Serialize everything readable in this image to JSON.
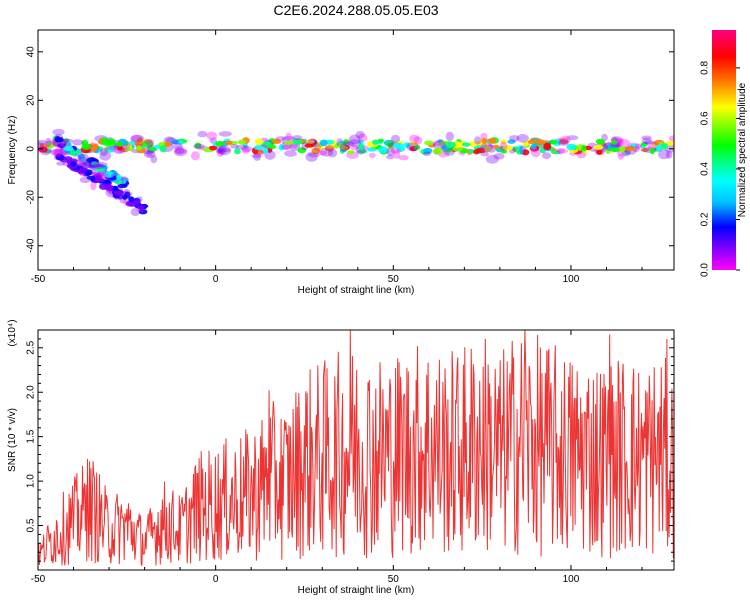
{
  "title": "C2E6.2024.288.05.05.E03",
  "chart_data": [
    {
      "type": "heatmap",
      "xlabel": "Height of straight line (km)",
      "ylabel": "Frequency (Hz)",
      "xlim": [
        -50,
        129
      ],
      "ylim": [
        -50,
        49
      ],
      "xticks": [
        -50,
        0,
        50,
        100
      ],
      "yticks": [
        -40,
        -20,
        0,
        20,
        40
      ],
      "colorbar": {
        "label": "Normalized spectral amplitude",
        "ticks": [
          0.0,
          0.2,
          0.4,
          0.6,
          0.8
        ],
        "range": [
          0,
          0.95
        ],
        "colormap": [
          "#ff00ff",
          "#8000ff",
          "#0000ff",
          "#00c0ff",
          "#00ffff",
          "#00ff80",
          "#00ff00",
          "#80ff00",
          "#ffff00",
          "#ff8000",
          "#ff0000",
          "#ff0080"
        ]
      },
      "ridges": [
        {
          "x_start": -50,
          "x_end": 129,
          "freq": 1,
          "intensity": 0.7
        },
        {
          "x_start": -45,
          "x_end": -25,
          "freq_start": 4,
          "freq_end": -15,
          "intensity": 0.4
        },
        {
          "x_start": -45,
          "x_end": -20,
          "freq_start": -2,
          "freq_end": -25,
          "intensity": 0.2
        }
      ]
    },
    {
      "type": "line",
      "xlabel": "Height of straight line (km)",
      "ylabel": "SNR (10 * v/v)",
      "y_multiplier": "(x10⁴)",
      "xlim": [
        -50,
        129
      ],
      "ylim": [
        0,
        2.7
      ],
      "xticks": [
        -50,
        0,
        50,
        100
      ],
      "yticks": [
        0.5,
        1.0,
        1.5,
        2.0,
        2.5
      ],
      "series": [
        {
          "color": "#ee3333",
          "x": [
            -50,
            -45,
            -40,
            -35,
            -30,
            -25,
            -20,
            -15,
            -10,
            -5,
            0,
            5,
            10,
            15,
            20,
            25,
            30,
            35,
            40,
            45,
            50,
            55,
            60,
            65,
            70,
            75,
            80,
            85,
            90,
            95,
            100,
            105,
            110,
            115,
            120,
            125,
            129
          ],
          "y": [
            0.15,
            0.4,
            0.55,
            0.7,
            0.45,
            0.5,
            0.3,
            0.55,
            0.45,
            0.7,
            0.75,
            0.8,
            0.85,
            1.0,
            1.0,
            1.2,
            1.25,
            1.3,
            1.35,
            1.3,
            1.3,
            1.35,
            1.4,
            1.3,
            1.35,
            1.45,
            1.3,
            1.45,
            1.4,
            1.35,
            1.3,
            1.3,
            1.25,
            1.3,
            1.25,
            1.3,
            1.2
          ],
          "peaks": [
            {
              "x": -36,
              "y": 1.25
            },
            {
              "x": 15,
              "y": 2.02
            },
            {
              "x": 38,
              "y": 2.7
            },
            {
              "x": 87,
              "y": 2.7
            },
            {
              "x": 111,
              "y": 2.65
            },
            {
              "x": 127,
              "y": 2.6
            }
          ]
        }
      ]
    }
  ]
}
